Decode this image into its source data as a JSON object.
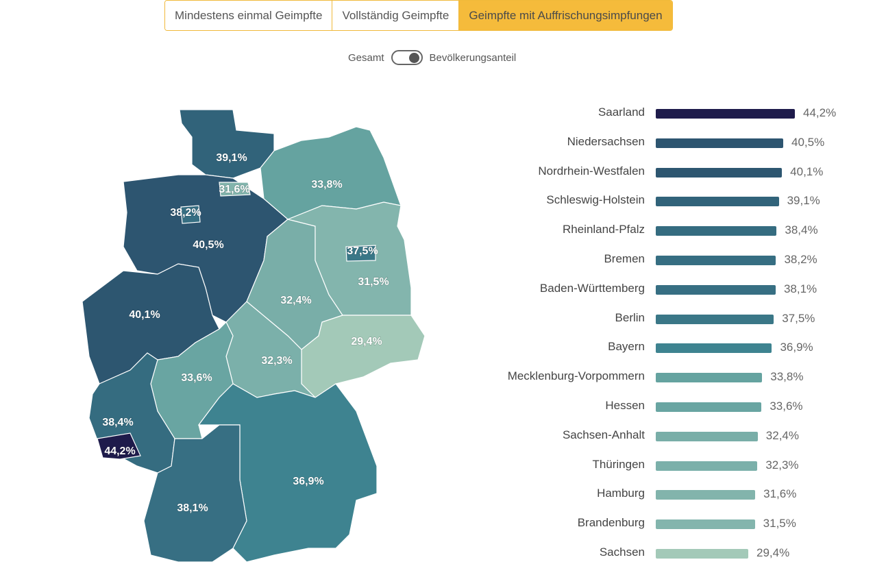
{
  "tabs": [
    {
      "label": "Mindestens einmal Geimpfte",
      "active": false
    },
    {
      "label": "Vollständig Geimpfte",
      "active": false
    },
    {
      "label": "Geimpfte mit Auffrischungsimpfungen",
      "active": true
    }
  ],
  "toggle": {
    "left_label": "Gesamt",
    "right_label": "Bevölkerungsanteil",
    "state": "right"
  },
  "chart_data": {
    "type": "bar",
    "orientation": "horizontal",
    "unit": "%",
    "categories": [
      "Saarland",
      "Niedersachsen",
      "Nordrhein-Westfalen",
      "Schleswig-Holstein",
      "Rheinland-Pfalz",
      "Bremen",
      "Baden-Württemberg",
      "Berlin",
      "Bayern",
      "Mecklenburg-Vorpommern",
      "Hessen",
      "Sachsen-Anhalt",
      "Thüringen",
      "Hamburg",
      "Brandenburg",
      "Sachsen"
    ],
    "values": [
      44.2,
      40.5,
      40.1,
      39.1,
      38.4,
      38.2,
      38.1,
      37.5,
      36.9,
      33.8,
      33.6,
      32.4,
      32.3,
      31.6,
      31.5,
      29.4
    ],
    "labels": [
      "44,2%",
      "40,5%",
      "40,1%",
      "39,1%",
      "38,4%",
      "38,2%",
      "38,1%",
      "37,5%",
      "36,9%",
      "33,8%",
      "33,6%",
      "32,4%",
      "32,3%",
      "31,6%",
      "31,5%",
      "29,4%"
    ],
    "colors": [
      "#1e1b4b",
      "#2d5570",
      "#2d5670",
      "#31637a",
      "#356c80",
      "#366e82",
      "#376f83",
      "#3a7787",
      "#3e8390",
      "#65a3a0",
      "#69a5a2",
      "#79aea8",
      "#7bb0aa",
      "#82b4ac",
      "#83b5ad",
      "#a3c9b8"
    ],
    "map": "choropleth of German federal states using the same values"
  }
}
